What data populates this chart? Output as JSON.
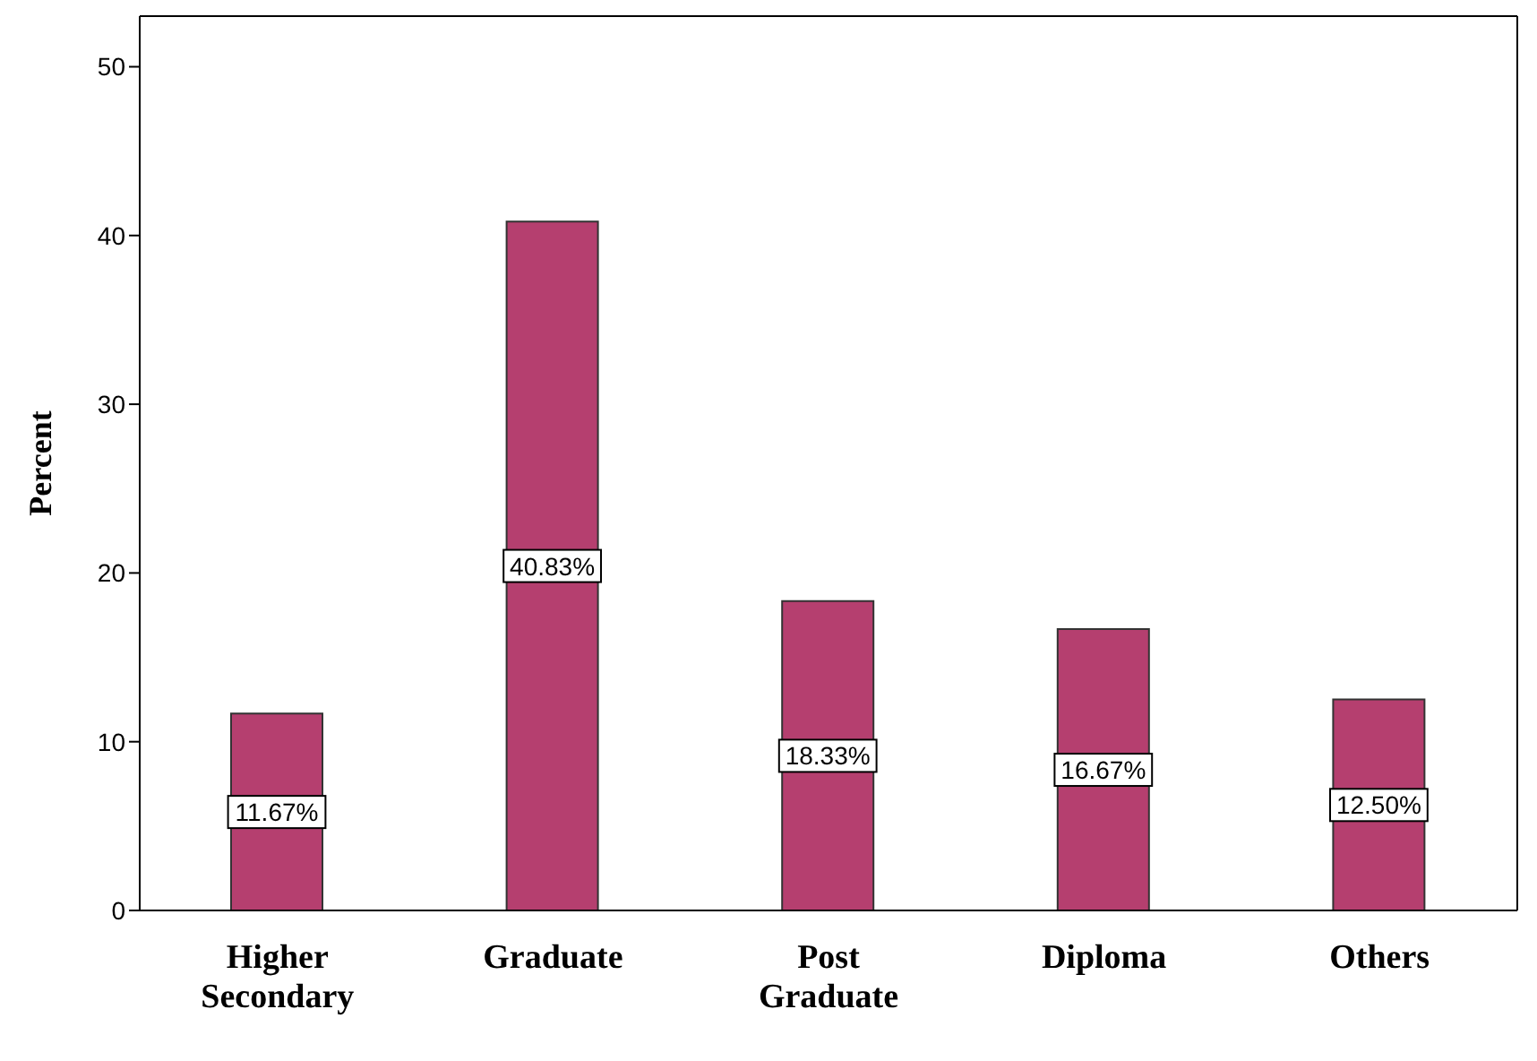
{
  "chart_data": {
    "type": "bar",
    "ylabel": "Percent",
    "categories": [
      "Higher Secondary",
      "Graduate",
      "Post Graduate",
      "Diploma",
      "Others"
    ],
    "values": [
      11.67,
      40.83,
      18.33,
      16.67,
      12.5
    ],
    "value_labels": [
      "11.67%",
      "40.83%",
      "18.33%",
      "16.67%",
      "12.50%"
    ],
    "color": "#b53f6f",
    "ylim": [
      0,
      53
    ],
    "yticks": [
      0,
      10,
      20,
      30,
      40,
      50
    ],
    "grid": false
  }
}
